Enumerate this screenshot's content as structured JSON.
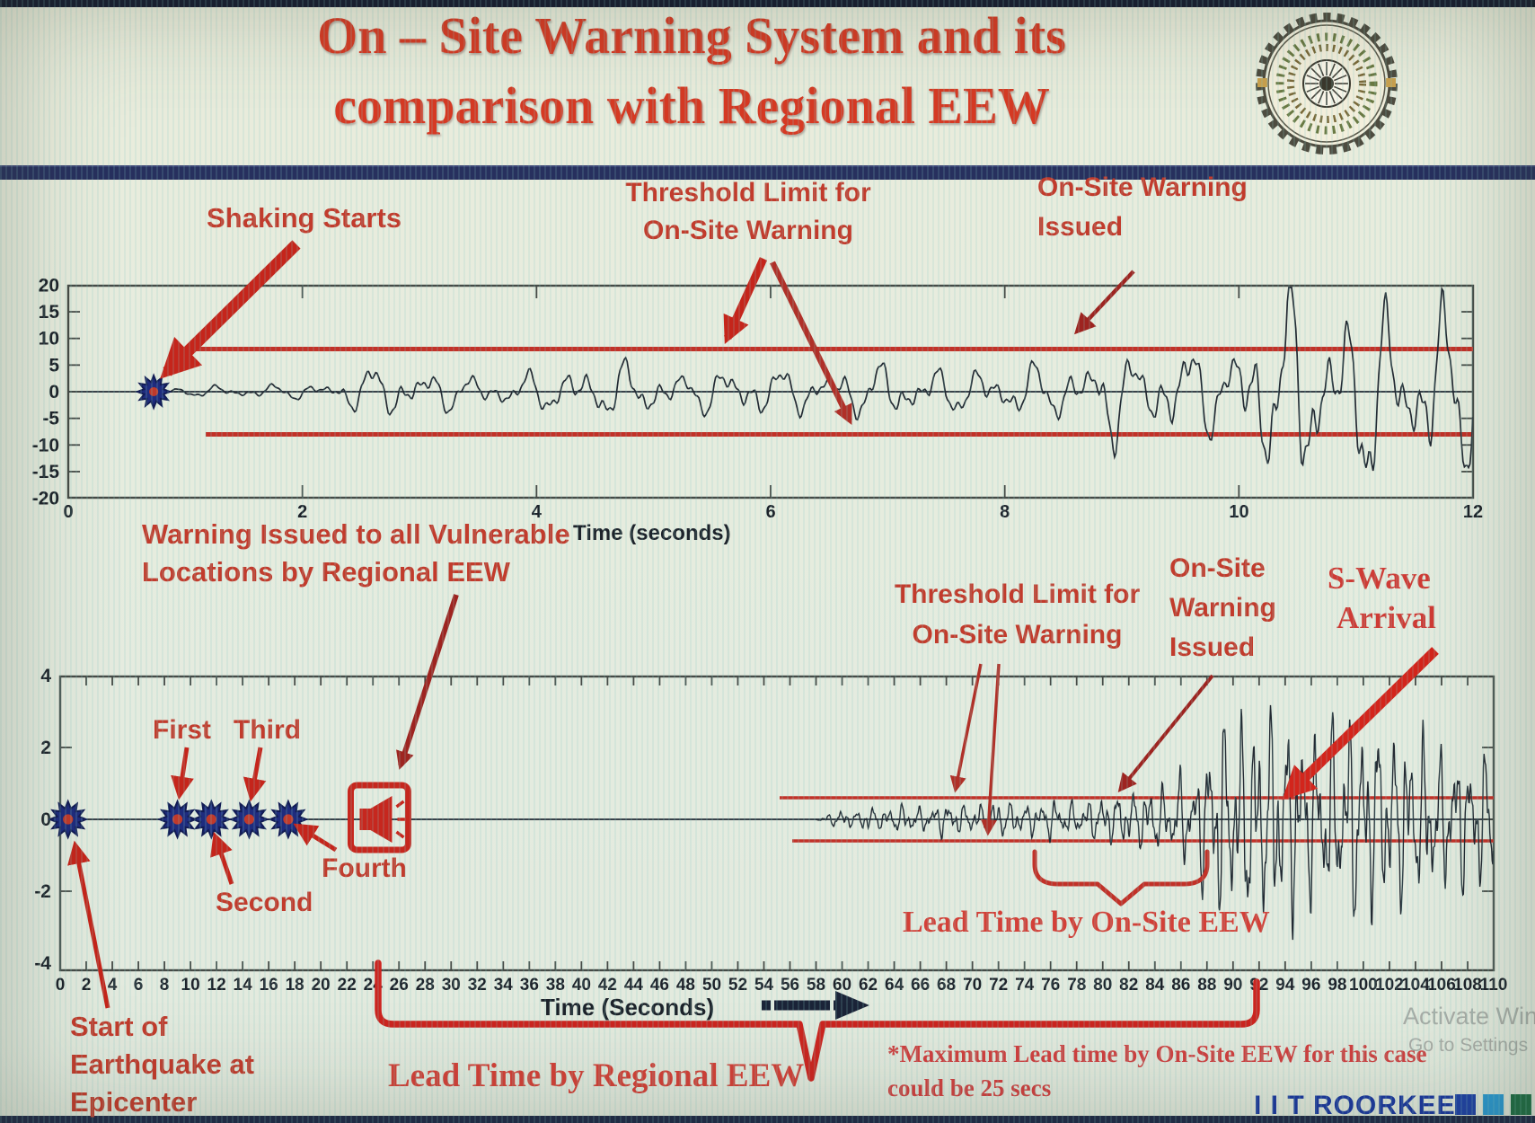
{
  "title": {
    "line1": "On – Site Warning System and its",
    "line2": "comparison with Regional EEW"
  },
  "top_chart": {
    "xlabel": "Time (seconds)",
    "annotations": {
      "shaking_starts": "Shaking Starts",
      "threshold_l1": "Threshold Limit for",
      "threshold_l2": "On-Site Warning",
      "issued_l1": "On-Site Warning",
      "issued_l2": "Issued"
    }
  },
  "bottom_chart": {
    "xlabel": "Time (Seconds)",
    "annotations": {
      "regional_l1": "Warning Issued to all Vulnerable",
      "regional_l2": "Locations by Regional EEW",
      "threshold_l1": "Threshold Limit for",
      "threshold_l2": "On-Site Warning",
      "issued_l1": "On-Site",
      "issued_l2": "Warning",
      "issued_l3": "Issued",
      "swave_l1": "S-Wave",
      "swave_l2": "Arrival",
      "first": "First",
      "second": "Second",
      "third": "Third",
      "fourth": "Fourth",
      "epicenter_l1": "Start of",
      "epicenter_l2": "Earthquake at",
      "epicenter_l3": "Epicenter",
      "lead_regional": "Lead Time by Regional EEW",
      "lead_onsite": "Lead Time by On-Site EEW",
      "note_l1": "*Maximum Lead time by On-Site EEW for this case",
      "note_l2": "could be 25 secs"
    }
  },
  "footer": {
    "brand": "I I T ROORKEE",
    "watermark_l1": "Activate Win",
    "watermark_l2": "Go to Settings"
  },
  "colors": {
    "title_red": "#d63a24",
    "annotation_red": "#c23b2c",
    "threshold_red": "#c23128",
    "waveform_dark": "#222a33",
    "star_navy": "#1e2c7e",
    "brand_navy": "#1a37a0",
    "brand_squares": [
      "#1d41a8",
      "#2a9ad4",
      "#1d6e46"
    ]
  },
  "chart_data": [
    {
      "type": "line",
      "id": "top",
      "description": "On-site warning single-station accelerogram",
      "xlabel": "Time (seconds)",
      "x_range": [
        0,
        12
      ],
      "x_tick_step": 2,
      "y_range": [
        -20,
        20
      ],
      "y_ticks": [
        20,
        15,
        10,
        5,
        0,
        -5,
        -10,
        -15,
        -20
      ],
      "threshold": 8,
      "shaking_start_s": 0.73,
      "warning_crossing_s": 8.9,
      "freqs": [
        2.3,
        3.7,
        6.3
      ],
      "envelope": [
        [
          0.73,
          0.3
        ],
        [
          1.2,
          0.9
        ],
        [
          2.2,
          1.3
        ],
        [
          2.6,
          4.2
        ],
        [
          3.1,
          3.4
        ],
        [
          3.6,
          2.2
        ],
        [
          4.2,
          3.6
        ],
        [
          4.8,
          4.6
        ],
        [
          5.2,
          2.8
        ],
        [
          5.8,
          4.2
        ],
        [
          6.4,
          3.2
        ],
        [
          7.0,
          4.6
        ],
        [
          7.6,
          3.4
        ],
        [
          8.1,
          4.2
        ],
        [
          8.75,
          4.6
        ],
        [
          8.9,
          9.4
        ],
        [
          9.1,
          4.6
        ],
        [
          9.5,
          8.0
        ],
        [
          9.9,
          6.0
        ],
        [
          10.2,
          13
        ],
        [
          10.5,
          17
        ],
        [
          10.8,
          10
        ],
        [
          11.1,
          17.5
        ],
        [
          11.4,
          9
        ],
        [
          11.7,
          15
        ],
        [
          12,
          12
        ]
      ]
    },
    {
      "type": "line",
      "id": "bottom",
      "description": "Regional EEW vs on-site EEW timeline seismogram",
      "xlabel": "Time (Seconds)",
      "x_range": [
        0,
        110
      ],
      "x_tick_step": 2,
      "y_range": [
        -4,
        4
      ],
      "y_ticks": [
        4,
        2,
        0,
        -2,
        -4
      ],
      "threshold": 0.6,
      "p_wave_detections_s": [
        0.6,
        9.0,
        11.6,
        14.5,
        17.5
      ],
      "regional_warning_s": 24.5,
      "waveform_onset_s": 58,
      "s_wave_arrival_s": 93,
      "max_onsite_lead_secs": 25,
      "freqs": [
        0.85,
        1.45,
        2.15
      ],
      "envelope": [
        [
          58,
          0.02
        ],
        [
          59,
          0.12
        ],
        [
          60,
          0.24
        ],
        [
          61,
          0.15
        ],
        [
          62,
          0.32
        ],
        [
          63,
          0.22
        ],
        [
          65,
          0.36
        ],
        [
          66,
          0.26
        ],
        [
          68,
          0.4
        ],
        [
          70,
          0.3
        ],
        [
          72,
          0.44
        ],
        [
          74,
          0.34
        ],
        [
          76,
          0.46
        ],
        [
          78,
          0.36
        ],
        [
          80,
          0.54
        ],
        [
          82,
          0.62
        ],
        [
          84,
          0.8
        ],
        [
          85,
          0.7
        ],
        [
          86,
          1.1
        ],
        [
          87,
          0.9
        ],
        [
          88,
          1.9
        ],
        [
          89,
          2.5
        ],
        [
          90,
          2.0
        ],
        [
          91,
          2.6
        ],
        [
          92,
          2.1
        ],
        [
          93,
          2.7
        ],
        [
          94,
          2.2
        ],
        [
          95,
          2.5
        ],
        [
          96,
          1.9
        ],
        [
          97,
          2.4
        ],
        [
          98,
          2.0
        ],
        [
          99,
          2.6
        ],
        [
          100,
          2.1
        ],
        [
          101,
          2.4
        ],
        [
          102,
          1.8
        ],
        [
          103,
          2.2
        ],
        [
          104,
          1.7
        ],
        [
          105,
          2.1
        ],
        [
          106,
          1.5
        ],
        [
          107,
          1.9
        ],
        [
          108,
          1.4
        ],
        [
          109,
          1.7
        ],
        [
          110,
          1.3
        ]
      ]
    }
  ]
}
